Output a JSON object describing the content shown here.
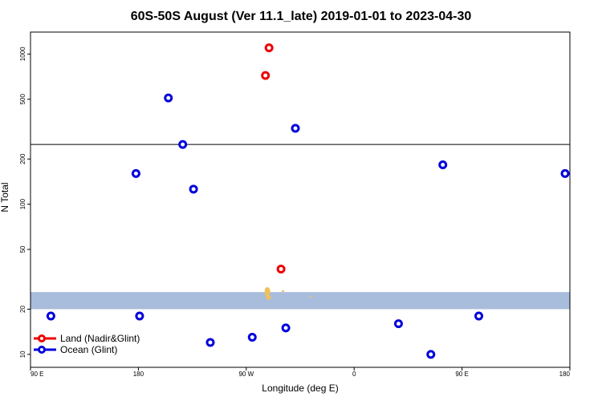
{
  "chart_data": {
    "type": "scatter",
    "title": "60S-50S August (Ver 11.1_late)   2019-01-01 to 2023-04-30",
    "xlabel": "Longitude (deg E)",
    "ylabel": "N Total",
    "y_scale": "log",
    "grid": false,
    "legend_position": "bottom-left",
    "x_ticks": [
      {
        "value": 90,
        "label": "90 E"
      },
      {
        "value": 180,
        "label": "180"
      },
      {
        "value": 270,
        "label": "90 W"
      },
      {
        "value": 360,
        "label": "0"
      },
      {
        "value": 450,
        "label": "90 E"
      },
      {
        "value": 540,
        "label": "180"
      }
    ],
    "y_ticks": [
      {
        "value": 10,
        "label": "10"
      },
      {
        "value": 20,
        "label": "20"
      },
      {
        "value": 50,
        "label": "50"
      },
      {
        "value": 100,
        "label": "100"
      },
      {
        "value": 200,
        "label": "200"
      },
      {
        "value": 500,
        "label": "500"
      },
      {
        "value": 1000,
        "label": "1000"
      }
    ],
    "xlim": [
      90,
      540
    ],
    "ylim": [
      8.2,
      1400
    ],
    "reference_line": {
      "y": 250,
      "color": "#000000"
    },
    "shaded_band": {
      "y_range": [
        20,
        26
      ],
      "color": "#a8bcdc"
    },
    "series": [
      {
        "name": "Land (Nadir&Glint)",
        "color": "#ee0000",
        "points": [
          {
            "x": 289,
            "y": 1100
          },
          {
            "x": 286,
            "y": 720
          },
          {
            "x": 299,
            "y": 37
          }
        ]
      },
      {
        "name": "Ocean (Glint)",
        "color": "#0000dd",
        "points": [
          {
            "x": 107,
            "y": 18
          },
          {
            "x": 181,
            "y": 18
          },
          {
            "x": 205,
            "y": 510
          },
          {
            "x": 178,
            "y": 160
          },
          {
            "x": 217,
            "y": 250
          },
          {
            "x": 226,
            "y": 126
          },
          {
            "x": 240,
            "y": 12
          },
          {
            "x": 275,
            "y": 13
          },
          {
            "x": 303,
            "y": 15
          },
          {
            "x": 311,
            "y": 320
          },
          {
            "x": 397,
            "y": 16
          },
          {
            "x": 424,
            "y": 10
          },
          {
            "x": 434,
            "y": 183
          },
          {
            "x": 464,
            "y": 18
          },
          {
            "x": 536,
            "y": 160
          }
        ]
      }
    ]
  },
  "legend": {
    "items": [
      {
        "label": "Land (Nadir&Glint)",
        "color": "#ee0000"
      },
      {
        "label": "Ocean (Glint)",
        "color": "#0000dd"
      }
    ]
  }
}
